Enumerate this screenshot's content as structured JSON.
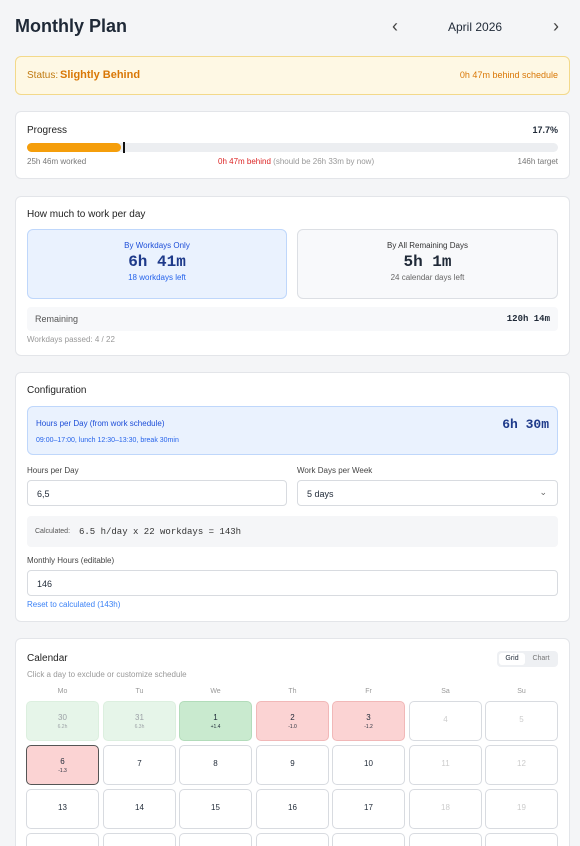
{
  "header": {
    "title": "Monthly Plan",
    "month": "April 2026"
  },
  "status": {
    "label": "Status:",
    "value": "Slightly Behind",
    "detail": "0h 47m behind schedule"
  },
  "progress": {
    "title": "Progress",
    "percent": "17.7%",
    "worked": "25h 46m worked",
    "behind": "0h 47m behind",
    "should": "(should be 26h 33m by now)",
    "target": "146h target"
  },
  "per_day": {
    "title": "How much to work per day",
    "workdays": {
      "title": "By Workdays Only",
      "value": "6h 41m",
      "note": "18 workdays left"
    },
    "all_days": {
      "title": "By All Remaining Days",
      "value": "5h 1m",
      "note": "24 calendar days left"
    },
    "remaining_label": "Remaining",
    "remaining_value": "120h 14m",
    "passed": "Workdays passed: 4 / 22"
  },
  "configuration": {
    "title": "Configuration",
    "schedule": {
      "title": "Hours per Day (from work schedule)",
      "detail": "09:00–17:00, lunch 12:30–13:30, break 30min",
      "value": "6h 30m"
    },
    "hours_label": "Hours per Day",
    "hours_value": "6,5",
    "days_label": "Work Days per Week",
    "days_value": "5 days",
    "calc_label": "Calculated:",
    "calc_formula": "6.5 h/day x 22 workdays = 143h",
    "monthly_label": "Monthly Hours (editable)",
    "monthly_value": "146",
    "reset": "Reset to calculated (143h)"
  },
  "calendar": {
    "title": "Calendar",
    "hint": "Click a day to exclude or customize schedule",
    "views": [
      "Grid",
      "Chart"
    ],
    "weekdays": [
      "Mo",
      "Tu",
      "We",
      "Th",
      "Fr",
      "Sa",
      "Su"
    ],
    "rows": [
      [
        {
          "day": "30",
          "note": "6.2h"
        },
        {
          "day": "31",
          "note": "6.3h"
        },
        {
          "day": "1",
          "note": "+1.4"
        },
        {
          "day": "2",
          "note": "-1.0"
        },
        {
          "day": "3",
          "note": "-1.2"
        },
        {
          "day": "4"
        },
        {
          "day": "5"
        }
      ],
      [
        {
          "day": "6",
          "note": "-1.3"
        },
        {
          "day": "7"
        },
        {
          "day": "8"
        },
        {
          "day": "9"
        },
        {
          "day": "10"
        },
        {
          "day": "11"
        },
        {
          "day": "12"
        }
      ],
      [
        {
          "day": "13"
        },
        {
          "day": "14"
        },
        {
          "day": "15"
        },
        {
          "day": "16"
        },
        {
          "day": "17"
        },
        {
          "day": "18"
        },
        {
          "day": "19"
        }
      ]
    ]
  }
}
